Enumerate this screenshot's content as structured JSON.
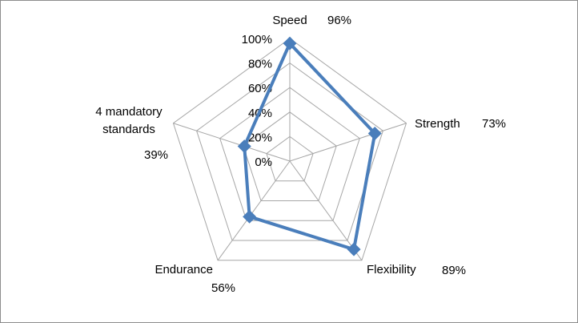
{
  "chart_data": {
    "type": "radar",
    "categories": [
      "Speed",
      "Strength",
      "Flexibility",
      "Endurance",
      "4 mandatory standards"
    ],
    "category_label_lines": [
      [
        "Speed"
      ],
      [
        "Strength"
      ],
      [
        "Flexibility"
      ],
      [
        "Endurance"
      ],
      [
        "4 mandatory",
        "standards"
      ]
    ],
    "values": [
      0.96,
      0.73,
      0.89,
      0.56,
      0.39
    ],
    "value_labels": [
      "96%",
      "73%",
      "89%",
      "56%",
      "39%"
    ],
    "rlim": [
      0,
      1
    ],
    "tick_labels": [
      "0%",
      "20%",
      "40%",
      "60%",
      "80%",
      "100%"
    ],
    "ticks": [
      0,
      0.2,
      0.4,
      0.6,
      0.8,
      1.0
    ],
    "grid": true,
    "series_color": "#4a7ebb",
    "grid_color": "#a6a6a6"
  }
}
